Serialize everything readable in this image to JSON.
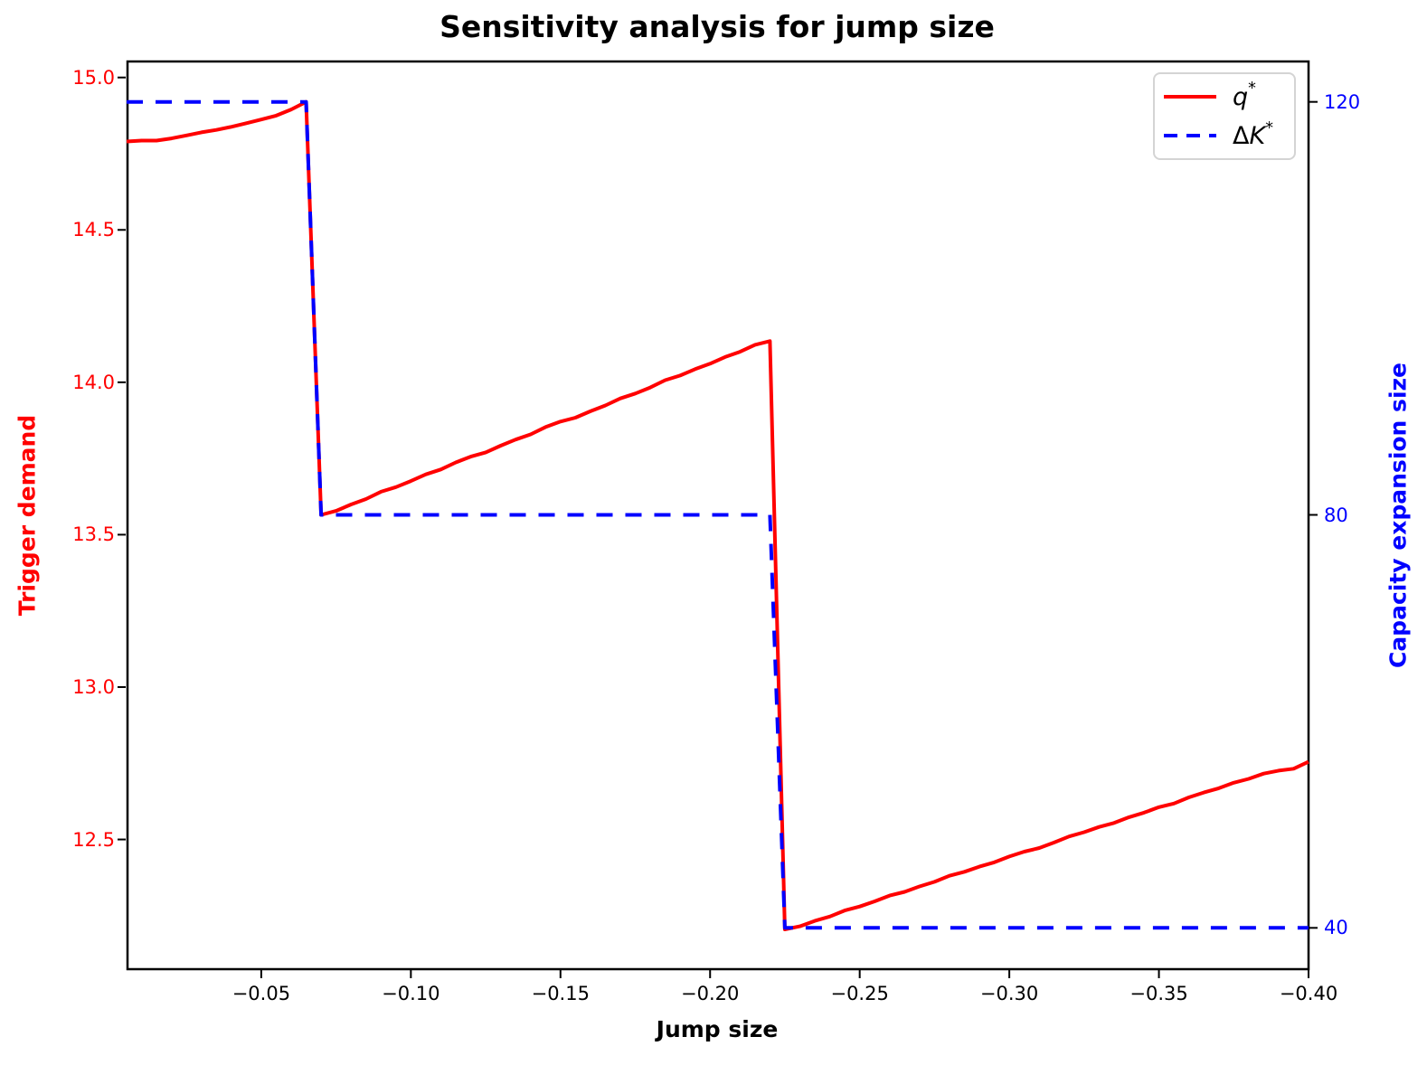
{
  "title": "Sensitivity analysis for jump size",
  "colors": {
    "q_star": "#ff0000",
    "delta_k_star": "#0000ff",
    "axis": "#000000",
    "legend_border": "#d4d4d4"
  },
  "axes": {
    "x": {
      "label": "Jump size",
      "tick_labels": [
        "−0.05",
        "−0.10",
        "−0.15",
        "−0.20",
        "−0.25",
        "−0.30",
        "−0.35",
        "−0.40"
      ],
      "tick_values": [
        -0.05,
        -0.1,
        -0.15,
        -0.2,
        -0.25,
        -0.3,
        -0.35,
        -0.4
      ]
    },
    "y_left": {
      "label": "Trigger demand",
      "tick_labels": [
        "15.0",
        "14.5",
        "14.0",
        "13.5",
        "13.0",
        "12.5"
      ],
      "tick_values": [
        15.0,
        14.5,
        14.0,
        13.5,
        13.0,
        12.5
      ]
    },
    "y_right": {
      "label": "Capacity expansion size",
      "tick_labels": [
        "120",
        "80",
        "40"
      ],
      "tick_values": [
        120,
        80,
        40
      ]
    }
  },
  "legend": {
    "entries": [
      {
        "prefix": "",
        "base": "q",
        "sup": "*"
      },
      {
        "prefix": "Δ",
        "base": "K",
        "sup": "*"
      }
    ]
  },
  "chart_data": {
    "type": "line",
    "title": "Sensitivity analysis for jump size",
    "xlabel": "Jump size",
    "ylabel_left": "Trigger demand",
    "ylabel_right": "Capacity expansion size",
    "x_range": [
      -0.005,
      -0.4
    ],
    "x_inverted": true,
    "ylim_left": [
      12.0745,
      15.0555
    ],
    "ylim_right": [
      36,
      124
    ],
    "grid": false,
    "legend_position": "upper right",
    "x": [
      -0.005,
      -0.01,
      -0.015,
      -0.02,
      -0.025,
      -0.03,
      -0.035,
      -0.04,
      -0.045,
      -0.05,
      -0.055,
      -0.06,
      -0.065,
      -0.07,
      -0.075,
      -0.08,
      -0.085,
      -0.09,
      -0.095,
      -0.1,
      -0.105,
      -0.11,
      -0.115,
      -0.12,
      -0.125,
      -0.13,
      -0.135,
      -0.14,
      -0.145,
      -0.15,
      -0.155,
      -0.16,
      -0.165,
      -0.17,
      -0.175,
      -0.18,
      -0.185,
      -0.19,
      -0.195,
      -0.2,
      -0.205,
      -0.21,
      -0.215,
      -0.22,
      -0.225,
      -0.23,
      -0.235,
      -0.24,
      -0.245,
      -0.25,
      -0.255,
      -0.26,
      -0.265,
      -0.27,
      -0.275,
      -0.28,
      -0.285,
      -0.29,
      -0.295,
      -0.3,
      -0.305,
      -0.31,
      -0.315,
      -0.32,
      -0.325,
      -0.33,
      -0.335,
      -0.34,
      -0.345,
      -0.35,
      -0.355,
      -0.36,
      -0.365,
      -0.37,
      -0.375,
      -0.38,
      -0.385,
      -0.39,
      -0.395,
      -0.4
    ],
    "series": [
      {
        "name": "q*",
        "axis": "left",
        "color": "#ff0000",
        "style": "solid",
        "values": [
          14.79,
          14.793,
          14.793,
          14.8,
          14.81,
          14.82,
          14.828,
          14.838,
          14.85,
          14.862,
          14.875,
          14.895,
          14.92,
          13.565,
          13.578,
          13.599,
          13.617,
          13.641,
          13.656,
          13.676,
          13.698,
          13.714,
          13.737,
          13.756,
          13.77,
          13.792,
          13.812,
          13.829,
          13.853,
          13.871,
          13.884,
          13.905,
          13.924,
          13.947,
          13.963,
          13.983,
          14.007,
          14.022,
          14.043,
          14.061,
          14.083,
          14.1,
          14.123,
          14.135,
          12.205,
          12.215,
          12.233,
          12.247,
          12.267,
          12.28,
          12.297,
          12.316,
          12.328,
          12.346,
          12.361,
          12.381,
          12.394,
          12.411,
          12.425,
          12.444,
          12.46,
          12.472,
          12.49,
          12.51,
          12.524,
          12.541,
          12.554,
          12.573,
          12.588,
          12.606,
          12.618,
          12.638,
          12.654,
          12.668,
          12.686,
          12.699,
          12.716,
          12.726,
          12.732,
          12.755
        ]
      },
      {
        "name": "ΔK*",
        "axis": "right",
        "color": "#0000ff",
        "style": "dashed",
        "values": [
          120,
          120,
          120,
          120,
          120,
          120,
          120,
          120,
          120,
          120,
          120,
          120,
          120,
          80,
          80,
          80,
          80,
          80,
          80,
          80,
          80,
          80,
          80,
          80,
          80,
          80,
          80,
          80,
          80,
          80,
          80,
          80,
          80,
          80,
          80,
          80,
          80,
          80,
          80,
          80,
          80,
          80,
          80,
          80,
          40,
          40,
          40,
          40,
          40,
          40,
          40,
          40,
          40,
          40,
          40,
          40,
          40,
          40,
          40,
          40,
          40,
          40,
          40,
          40,
          40,
          40,
          40,
          40,
          40,
          40,
          40,
          40,
          40,
          40,
          40,
          40,
          40,
          40,
          40,
          40
        ]
      }
    ]
  }
}
